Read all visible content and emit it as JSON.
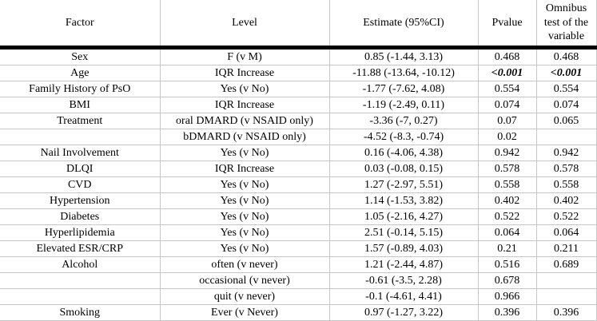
{
  "table": {
    "columns": [
      {
        "key": "factor",
        "label": "Factor"
      },
      {
        "key": "level",
        "label": "Level"
      },
      {
        "key": "estimate",
        "label": "Estimate (95%CI)"
      },
      {
        "key": "pvalue",
        "label": "Pvalue"
      },
      {
        "key": "omnibus",
        "label": "Omnibus test of the variable"
      }
    ],
    "rows": [
      {
        "cells": [
          "Sex",
          "F (v M)",
          "0.85 (-1.44, 3.13)",
          "0.468",
          "0.468"
        ],
        "bold_italic_cols": []
      },
      {
        "cells": [
          "Age",
          "IQR Increase",
          "-11.88 (-13.64, -10.12)",
          "<0.001",
          "<0.001"
        ],
        "bold_italic_cols": [
          3,
          4
        ]
      },
      {
        "cells": [
          "Family History of PsO",
          "Yes (v No)",
          "-1.77 (-7.62, 4.08)",
          "0.554",
          "0.554"
        ],
        "bold_italic_cols": []
      },
      {
        "cells": [
          "BMI",
          "IQR Increase",
          "-1.19 (-2.49, 0.11)",
          "0.074",
          "0.074"
        ],
        "bold_italic_cols": []
      },
      {
        "cells": [
          "Treatment",
          "oral DMARD (v NSAID only)",
          "-3.36 (-7, 0.27)",
          "0.07",
          "0.065"
        ],
        "bold_italic_cols": []
      },
      {
        "cells": [
          "",
          "bDMARD (v NSAID only)",
          "-4.52 (-8.3, -0.74)",
          "0.02",
          ""
        ],
        "bold_italic_cols": []
      },
      {
        "cells": [
          "Nail Involvement",
          "Yes (v No)",
          "0.16 (-4.06, 4.38)",
          "0.942",
          "0.942"
        ],
        "bold_italic_cols": []
      },
      {
        "cells": [
          "DLQI",
          "IQR Increase",
          "0.03 (-0.08, 0.15)",
          "0.578",
          "0.578"
        ],
        "bold_italic_cols": []
      },
      {
        "cells": [
          "CVD",
          "Yes (v No)",
          "1.27 (-2.97, 5.51)",
          "0.558",
          "0.558"
        ],
        "bold_italic_cols": []
      },
      {
        "cells": [
          "Hypertension",
          "Yes (v No)",
          "1.14 (-1.53, 3.82)",
          "0.402",
          "0.402"
        ],
        "bold_italic_cols": []
      },
      {
        "cells": [
          "Diabetes",
          "Yes (v No)",
          "1.05 (-2.16, 4.27)",
          "0.522",
          "0.522"
        ],
        "bold_italic_cols": []
      },
      {
        "cells": [
          "Hyperlipidemia",
          "Yes (v No)",
          "2.51 (-0.14, 5.15)",
          "0.064",
          "0.064"
        ],
        "bold_italic_cols": []
      },
      {
        "cells": [
          "Elevated ESR/CRP",
          "Yes (v No)",
          "1.57 (-0.89, 4.03)",
          "0.21",
          "0.211"
        ],
        "bold_italic_cols": []
      },
      {
        "cells": [
          "Alcohol",
          "often (v never)",
          "1.21 (-2.44, 4.87)",
          "0.516",
          "0.689"
        ],
        "bold_italic_cols": []
      },
      {
        "cells": [
          "",
          "occasional (v never)",
          "-0.61 (-3.5, 2.28)",
          "0.678",
          ""
        ],
        "bold_italic_cols": []
      },
      {
        "cells": [
          "",
          "quit (v never)",
          "-0.1 (-4.61, 4.41)",
          "0.966",
          ""
        ],
        "bold_italic_cols": []
      },
      {
        "cells": [
          "Smoking",
          "Ever (v Never)",
          "0.97 (-1.27, 3.22)",
          "0.396",
          "0.396"
        ],
        "bold_italic_cols": []
      }
    ]
  },
  "styles": {
    "grid_color": "#c6c6c6",
    "header_rule_color": "#000000",
    "text_color": "#000000",
    "background_color": "#ffffff",
    "significant_value_style": "bold-italic"
  }
}
